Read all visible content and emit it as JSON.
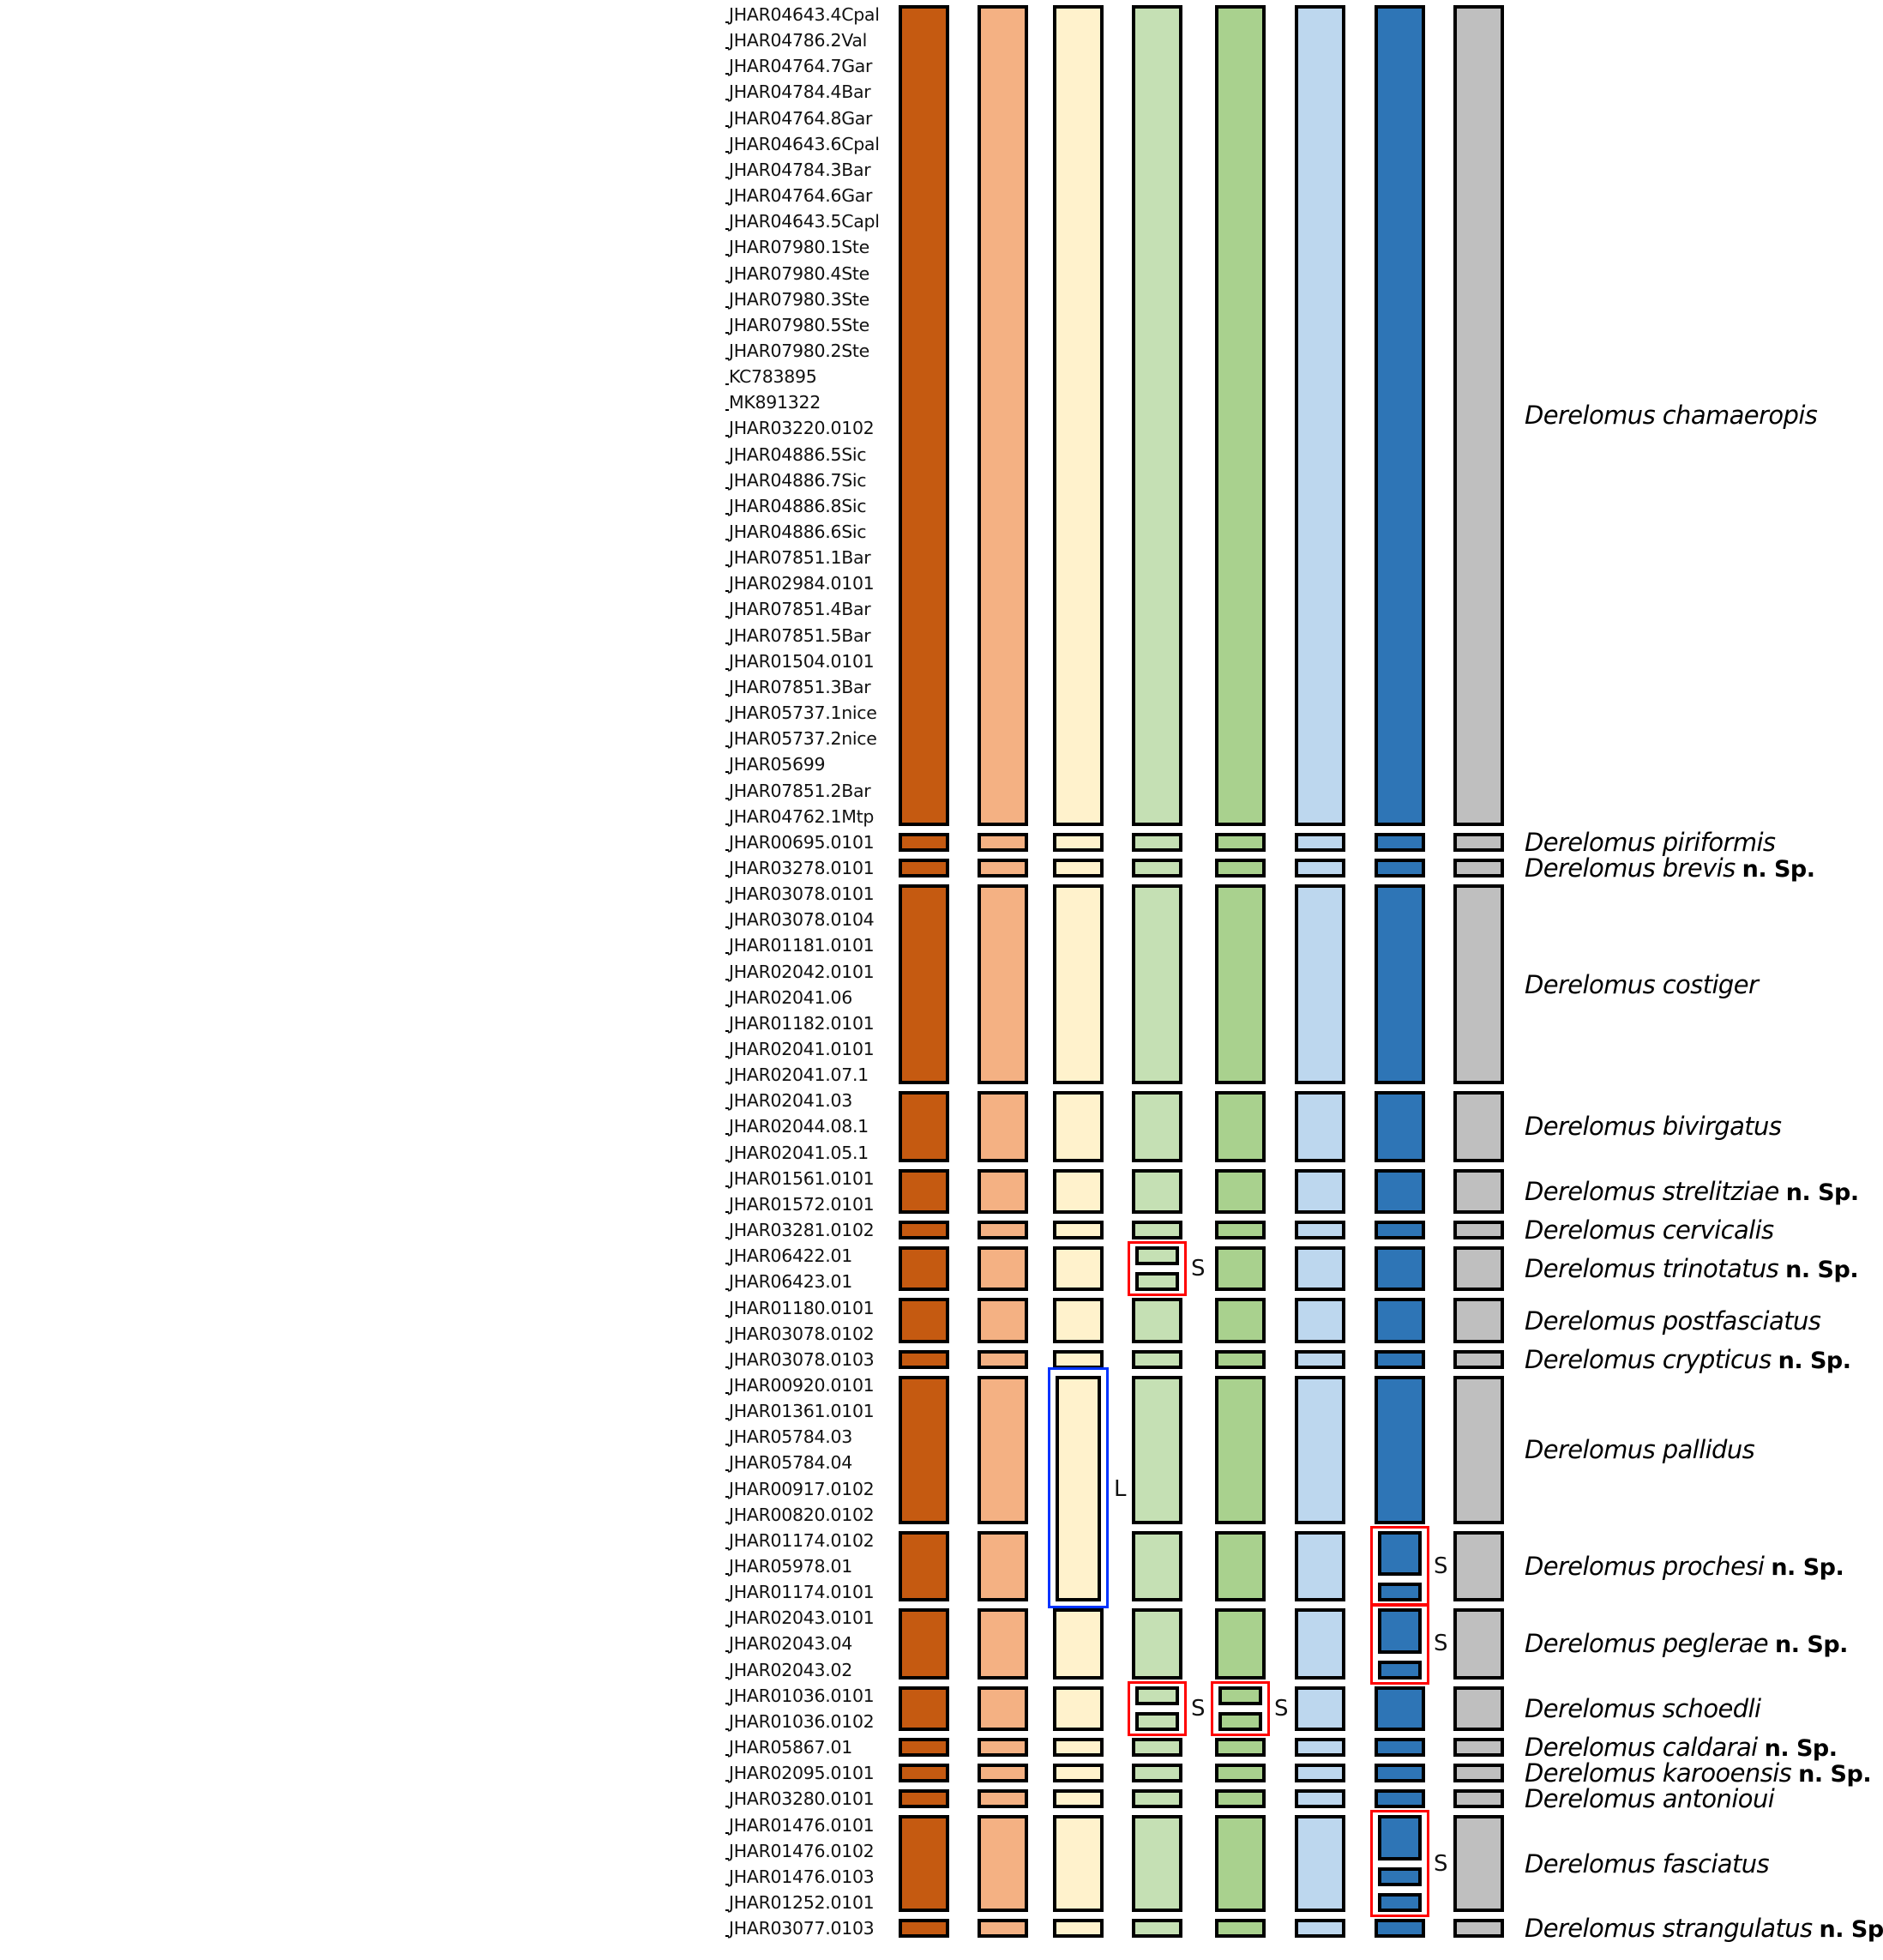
{
  "figure": {
    "type": "species-delimitation-comparison",
    "columns": [
      {
        "id": "m1",
        "color": "#c55a11"
      },
      {
        "id": "m2",
        "color": "#f4b183"
      },
      {
        "id": "m3",
        "color": "#fff2cc"
      },
      {
        "id": "m4",
        "color": "#c5e0b4"
      },
      {
        "id": "m5",
        "color": "#a9d18e"
      },
      {
        "id": "m6",
        "color": "#bdd7ee"
      },
      {
        "id": "m7",
        "color": "#2e75b6"
      },
      {
        "id": "m8",
        "color": "#bfbfbf"
      }
    ],
    "specimens": [
      "JHAR04643.4Cpal",
      "JHAR04786.2Val",
      "JHAR04764.7Gar",
      "JHAR04784.4Bar",
      "JHAR04764.8Gar",
      "JHAR04643.6Cpal",
      "JHAR04784.3Bar",
      "JHAR04764.6Gar",
      "JHAR04643.5Capl",
      "JHAR07980.1Ste",
      "JHAR07980.4Ste",
      "JHAR07980.3Ste",
      "JHAR07980.5Ste",
      "JHAR07980.2Ste",
      "KC783895",
      "MK891322",
      "JHAR03220.0102",
      "JHAR04886.5Sic",
      "JHAR04886.7Sic",
      "JHAR04886.8Sic",
      "JHAR04886.6Sic",
      "JHAR07851.1Bar",
      "JHAR02984.0101",
      "JHAR07851.4Bar",
      "JHAR07851.5Bar",
      "JHAR01504.0101",
      "JHAR07851.3Bar",
      "JHAR05737.1nice",
      "JHAR05737.2nice",
      "JHAR05699",
      "JHAR07851.2Bar",
      "JHAR04762.1Mtp",
      "JHAR00695.0101",
      "JHAR03278.0101",
      "JHAR03078.0101",
      "JHAR03078.0104",
      "JHAR01181.0101",
      "JHAR02042.0101",
      "JHAR02041.06",
      "JHAR01182.0101",
      "JHAR02041.0101",
      "JHAR02041.07.1",
      "JHAR02041.03",
      "JHAR02044.08.1",
      "JHAR02041.05.1",
      "JHAR01561.0101",
      "JHAR01572.0101",
      "JHAR03281.0102",
      "JHAR06422.01",
      "JHAR06423.01",
      "JHAR01180.0101",
      "JHAR03078.0102",
      "JHAR03078.0103",
      "JHAR00920.0101",
      "JHAR01361.0101",
      "JHAR05784.03",
      "JHAR05784.04",
      "JHAR00917.0102",
      "JHAR00820.0102",
      "JHAR01174.0102",
      "JHAR05978.01",
      "JHAR01174.0101",
      "JHAR02043.0101",
      "JHAR02043.04",
      "JHAR02043.02",
      "JHAR01036.0101",
      "JHAR01036.0102",
      "JHAR05867.01",
      "JHAR02095.0101",
      "JHAR03280.0101",
      "JHAR01476.0101",
      "JHAR01476.0102",
      "JHAR01476.0103",
      "JHAR01252.0101",
      "JHAR03077.0103"
    ],
    "species_groups": [
      {
        "genus": "Derelomus",
        "epithet": "chamaeropis",
        "new_species": "",
        "rows": [
          0,
          31
        ]
      },
      {
        "genus": "Derelomus",
        "epithet": "piriformis",
        "new_species": "",
        "rows": [
          32,
          32
        ]
      },
      {
        "genus": "Derelomus",
        "epithet": "brevis",
        "new_species": "n. Sp.",
        "rows": [
          33,
          33
        ]
      },
      {
        "genus": "Derelomus",
        "epithet": "costiger",
        "new_species": "",
        "rows": [
          34,
          41
        ]
      },
      {
        "genus": "Derelomus",
        "epithet": "bivirgatus",
        "new_species": "",
        "rows": [
          42,
          44
        ]
      },
      {
        "genus": "Derelomus",
        "epithet": "strelitziae",
        "new_species": "n. Sp.",
        "rows": [
          45,
          46
        ]
      },
      {
        "genus": "Derelomus",
        "epithet": "cervicalis",
        "new_species": "",
        "rows": [
          47,
          47
        ]
      },
      {
        "genus": "Derelomus",
        "epithet": "trinotatus",
        "new_species": "n. Sp.",
        "rows": [
          48,
          49
        ]
      },
      {
        "genus": "Derelomus",
        "epithet": "postfasciatus",
        "new_species": "",
        "rows": [
          50,
          51
        ]
      },
      {
        "genus": "Derelomus",
        "epithet": "crypticus",
        "new_species": "n. Sp.",
        "rows": [
          52,
          52
        ]
      },
      {
        "genus": "Derelomus",
        "epithet": "pallidus",
        "new_species": "",
        "rows": [
          53,
          58
        ]
      },
      {
        "genus": "Derelomus",
        "epithet": "prochesi",
        "new_species": "n. Sp.",
        "rows": [
          59,
          61
        ]
      },
      {
        "genus": "Derelomus",
        "epithet": "peglerae",
        "new_species": "n. Sp.",
        "rows": [
          62,
          64
        ]
      },
      {
        "genus": "Derelomus",
        "epithet": "schoedli",
        "new_species": "",
        "rows": [
          65,
          66
        ]
      },
      {
        "genus": "Derelomus",
        "epithet": "caldarai",
        "new_species": "n. Sp.",
        "rows": [
          67,
          67
        ]
      },
      {
        "genus": "Derelomus",
        "epithet": "karooensis",
        "new_species": "n. Sp.",
        "rows": [
          68,
          68
        ]
      },
      {
        "genus": "Derelomus",
        "epithet": "antonioui",
        "new_species": "",
        "rows": [
          69,
          69
        ]
      },
      {
        "genus": "Derelomus",
        "epithet": "fasciatus",
        "new_species": "",
        "rows": [
          70,
          73
        ]
      },
      {
        "genus": "Derelomus",
        "epithet": "strangulatus",
        "new_species": "n. Sp.",
        "rows": [
          74,
          74
        ]
      }
    ],
    "splits": [
      {
        "column": 3,
        "group": 7,
        "parts": [
          [
            48,
            48
          ],
          [
            49,
            49
          ]
        ],
        "kind": "S",
        "box_color": "#ff0000"
      },
      {
        "column": 6,
        "group": 11,
        "parts": [
          [
            59,
            60
          ],
          [
            61,
            61
          ]
        ],
        "kind": "S",
        "box_color": "#ff0000"
      },
      {
        "column": 6,
        "group": 12,
        "parts": [
          [
            62,
            63
          ],
          [
            64,
            64
          ]
        ],
        "kind": "S",
        "box_color": "#ff0000"
      },
      {
        "column": 3,
        "group": 13,
        "parts": [
          [
            65,
            65
          ],
          [
            66,
            66
          ]
        ],
        "kind": "S",
        "box_color": "#ff0000"
      },
      {
        "column": 4,
        "group": 13,
        "parts": [
          [
            65,
            65
          ],
          [
            66,
            66
          ]
        ],
        "kind": "S",
        "box_color": "#ff0000"
      },
      {
        "column": 6,
        "group": 17,
        "parts": [
          [
            70,
            71
          ],
          [
            72,
            72
          ],
          [
            73,
            73
          ]
        ],
        "kind": "S",
        "box_color": "#ff0000"
      }
    ],
    "lumps": [
      {
        "column": 2,
        "groups": [
          10,
          11
        ],
        "rows": [
          53,
          61
        ],
        "kind": "L",
        "box_color": "#0033ff"
      }
    ]
  }
}
